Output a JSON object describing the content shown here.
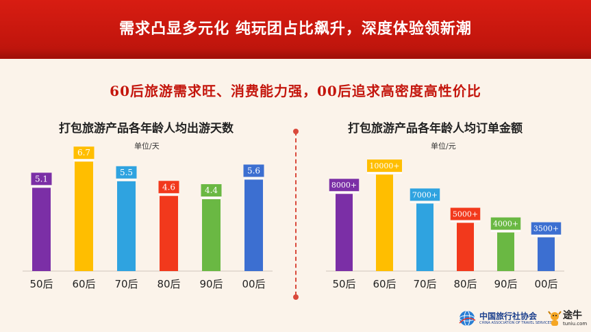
{
  "banner": {
    "title": "需求凸显多元化  纯玩团占比飙升，深度体验领新潮"
  },
  "subtitle": "60后旅游需求旺、消费能力强，00后追求高密度高性价比",
  "colors": {
    "banner": "#c4160d",
    "bars": [
      "#7b2fa6",
      "#ffbe00",
      "#2fa3e0",
      "#f2391c",
      "#6ab843",
      "#3c6fd1"
    ]
  },
  "chart_data": [
    {
      "type": "bar",
      "title": "打包旅游产品各年龄人均出游天数",
      "unit": "单位/天",
      "categories": [
        "50后",
        "60后",
        "70后",
        "80后",
        "90后",
        "00后"
      ],
      "values": [
        5.1,
        6.7,
        5.5,
        4.6,
        4.4,
        5.6
      ],
      "labels": [
        "5.1",
        "6.7",
        "5.5",
        "4.6",
        "4.4",
        "5.6"
      ],
      "ylim": [
        0,
        7
      ]
    },
    {
      "type": "bar",
      "title": "打包旅游产品各年龄人均订单金额",
      "unit": "单位/元",
      "categories": [
        "50后",
        "60后",
        "70后",
        "80后",
        "90后",
        "00后"
      ],
      "values": [
        8000,
        10000,
        7000,
        5000,
        4000,
        3500
      ],
      "labels": [
        "8000+",
        "10000+",
        "7000+",
        "5000+",
        "4000+",
        "3500+"
      ],
      "ylim": [
        0,
        10500
      ]
    }
  ],
  "footer": {
    "cata_name": "中国旅行社协会",
    "cata_en": "CHINA ASSOCIATION OF TRAVEL SERVICES",
    "tuniu_name": "途牛",
    "tuniu_domain": "tuniu.com"
  }
}
